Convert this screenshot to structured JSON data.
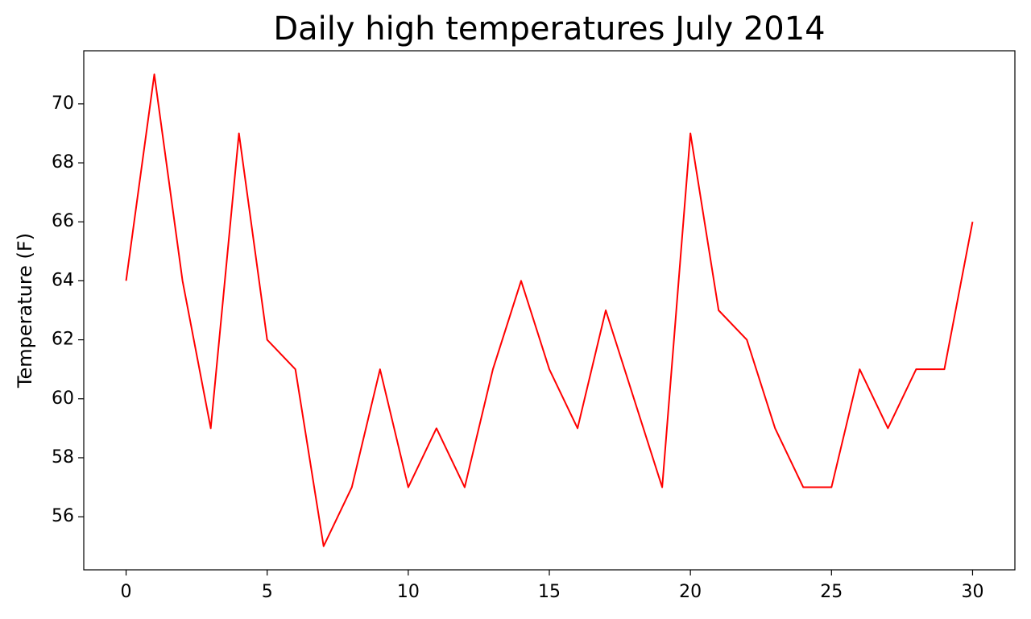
{
  "chart_data": {
    "type": "line",
    "title": "Daily high temperatures July 2014",
    "y_label": "Temperature (F)",
    "x": [
      0,
      1,
      2,
      3,
      4,
      5,
      6,
      7,
      8,
      9,
      10,
      11,
      12,
      13,
      14,
      15,
      16,
      17,
      18,
      19,
      20,
      21,
      22,
      23,
      24,
      25,
      26,
      27,
      28,
      29,
      30
    ],
    "series": [
      {
        "color": "#ff0000",
        "values": [
          64,
          71,
          64,
          59,
          69,
          62,
          61,
          55,
          57,
          61,
          57,
          59,
          57,
          61,
          64,
          61,
          59,
          63,
          60,
          57,
          69,
          63,
          62,
          59,
          57,
          57,
          61,
          59,
          61,
          61,
          66
        ]
      }
    ],
    "xlim": [
      -1.5,
      31.5
    ],
    "xticks": [
      0,
      5,
      10,
      15,
      20,
      25,
      30
    ],
    "ylim": [
      54.2,
      71.8
    ],
    "yticks": [
      56,
      58,
      60,
      62,
      64,
      66,
      68,
      70
    ]
  }
}
